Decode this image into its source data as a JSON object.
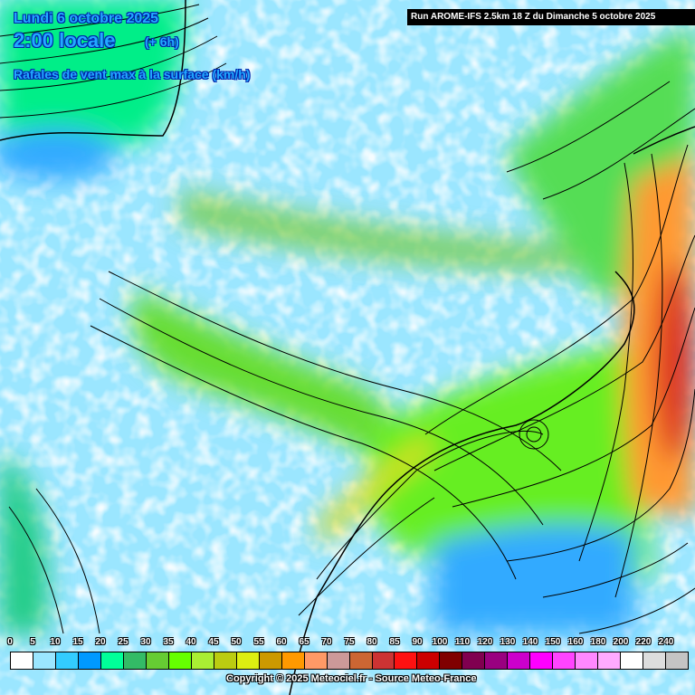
{
  "header": {
    "date": "Lundi 6 octobre 2025",
    "time": "2:00 locale",
    "offset": "(+ 6h)",
    "parameter": "Rafales de vent max à la surface (km/h)",
    "run": "Run AROME-IFS 2.5km 18 Z du Dimanche 5 octobre 2025"
  },
  "legend": {
    "labels": [
      "0",
      "5",
      "10",
      "15",
      "20",
      "25",
      "30",
      "35",
      "40",
      "45",
      "50",
      "55",
      "60",
      "65",
      "70",
      "75",
      "80",
      "85",
      "90",
      "100",
      "110",
      "120",
      "130",
      "140",
      "150",
      "160",
      "180",
      "200",
      "220",
      "240"
    ],
    "colors": [
      "#ffffff",
      "#9be6ff",
      "#33ccff",
      "#0099ff",
      "#00ff99",
      "#33bb66",
      "#66cc33",
      "#66ff00",
      "#aaee33",
      "#bbcc11",
      "#ddee11",
      "#cc9900",
      "#ff9900",
      "#ff9966",
      "#cc9999",
      "#cc6633",
      "#cc3333",
      "#ff1111",
      "#cc0000",
      "#800000",
      "#800050",
      "#990080",
      "#cc00cc",
      "#ff00ff",
      "#ff44ff",
      "#ff88ff",
      "#ffaaff",
      "#ffffff",
      "#dddddd",
      "#c4c4c4"
    ]
  },
  "footer": {
    "copyright": "Copyright © 2025 Meteociel.fr - Source Meteo-France"
  }
}
